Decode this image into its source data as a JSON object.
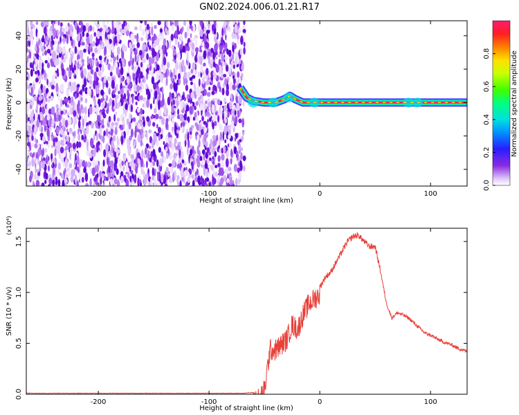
{
  "title": "GN02.2024.006.01.21.R17",
  "colors": {
    "snr_line": "#e8403a",
    "noise_purple": "#7a1fe0",
    "signal_red": "#ff2a4a",
    "axis": "#000000"
  },
  "chart_data": [
    {
      "type": "heatmap",
      "title": "GN02.2024.006.01.21.R17",
      "xlabel": "Height of straight line (km)",
      "ylabel": "Frequency (Hz)",
      "xlim": [
        -265,
        133
      ],
      "ylim": [
        -50,
        49
      ],
      "xticks": [
        -200,
        -100,
        0,
        100
      ],
      "yticks": [
        -40,
        -20,
        0,
        20,
        40
      ],
      "colorbar": {
        "label": "Normalized spectral amplitude",
        "range": [
          0.0,
          1.0
        ],
        "ticks": [
          "0.0",
          "0.2",
          "0.4",
          "0.6",
          "0.8"
        ],
        "colormap": "rainbow (white-purple-blue-cyan-green-yellow-red-magenta)"
      },
      "regions": [
        {
          "kind": "noise",
          "x_range": [
            -265,
            -68
          ],
          "y_range": [
            -50,
            49
          ],
          "amplitude": "0.0-0.3"
        },
        {
          "kind": "signal",
          "x_range": [
            -70,
            133
          ],
          "frequency_hz": 0,
          "amplitude": "0.6-1.0"
        }
      ],
      "signal_trace": [
        {
          "x": -72,
          "y": 9
        },
        {
          "x": -69,
          "y": 6
        },
        {
          "x": -66,
          "y": 3
        },
        {
          "x": -60,
          "y": 1
        },
        {
          "x": -50,
          "y": 0
        },
        {
          "x": -40,
          "y": 0
        },
        {
          "x": -32,
          "y": 2
        },
        {
          "x": -27,
          "y": 4
        },
        {
          "x": -22,
          "y": 2
        },
        {
          "x": -15,
          "y": 0
        },
        {
          "x": 0,
          "y": 0
        },
        {
          "x": 50,
          "y": 0
        },
        {
          "x": 100,
          "y": 0
        },
        {
          "x": 133,
          "y": 0
        }
      ]
    },
    {
      "type": "line",
      "xlabel": "Height of straight line (km)",
      "ylabel": "SNR (10 * v/v)",
      "y_multiplier": "(x10⁴)",
      "xlim": [
        -265,
        133
      ],
      "ylim": [
        0,
        1.63
      ],
      "xticks": [
        -200,
        -100,
        0,
        100
      ],
      "yticks": [
        0.0,
        0.5,
        1.0,
        1.5
      ],
      "ytick_labels": [
        "0.0",
        "0.5",
        "1.0",
        "1.5"
      ],
      "series": [
        {
          "x": [
            -265,
            -200,
            -150,
            -100,
            -70,
            -55,
            -50,
            -45,
            -40,
            -35,
            -30,
            -25,
            -20,
            -15,
            -10,
            -5,
            0,
            5,
            10,
            15,
            20,
            25,
            30,
            35,
            40,
            45,
            50,
            55,
            60,
            65,
            70,
            75,
            80,
            85,
            90,
            95,
            100,
            105,
            110,
            115,
            120,
            125,
            133
          ],
          "y": [
            0.01,
            0.01,
            0.01,
            0.01,
            0.01,
            0.02,
            0.1,
            0.5,
            0.5,
            0.55,
            0.6,
            0.75,
            0.7,
            0.85,
            0.95,
            1.0,
            1.05,
            1.15,
            1.2,
            1.3,
            1.4,
            1.5,
            1.55,
            1.56,
            1.5,
            1.45,
            1.45,
            1.2,
            0.9,
            0.75,
            0.8,
            0.78,
            0.75,
            0.7,
            0.65,
            0.6,
            0.58,
            0.55,
            0.52,
            0.5,
            0.48,
            0.45,
            0.42
          ]
        }
      ]
    }
  ]
}
